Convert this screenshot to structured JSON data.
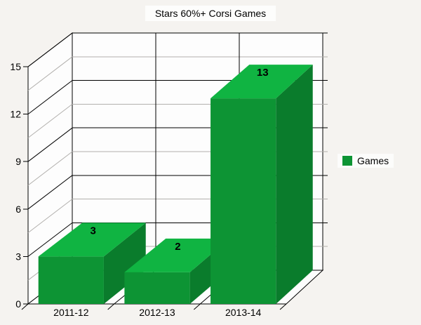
{
  "chart_data": {
    "type": "bar",
    "style": "3d-column",
    "title": "Stars 60%+ Corsi Games",
    "categories": [
      "2011-12",
      "2012-13",
      "2013-14"
    ],
    "series": [
      {
        "name": "Games",
        "values": [
          3,
          2,
          13
        ]
      }
    ],
    "value_labels": [
      "3",
      "2",
      "13"
    ],
    "xlabel": "",
    "ylabel": "",
    "ylim": [
      0,
      15
    ],
    "y_major_ticks": [
      0,
      3,
      6,
      9,
      12,
      15
    ],
    "y_major_step": 3,
    "y_minor_step": 1.5,
    "grid": "major-black-minor-gray",
    "legend_position": "right"
  },
  "colors": {
    "background": "#f5f3f0",
    "wall": "#fdfdfd",
    "grid_major": "#000000",
    "grid_minor": "#b2b0ad",
    "bar_top": "#10b442",
    "bar_front": "#0d9434",
    "bar_side": "#0a7c2c",
    "legend_swatch": "#0d9434",
    "text": "#000000"
  }
}
